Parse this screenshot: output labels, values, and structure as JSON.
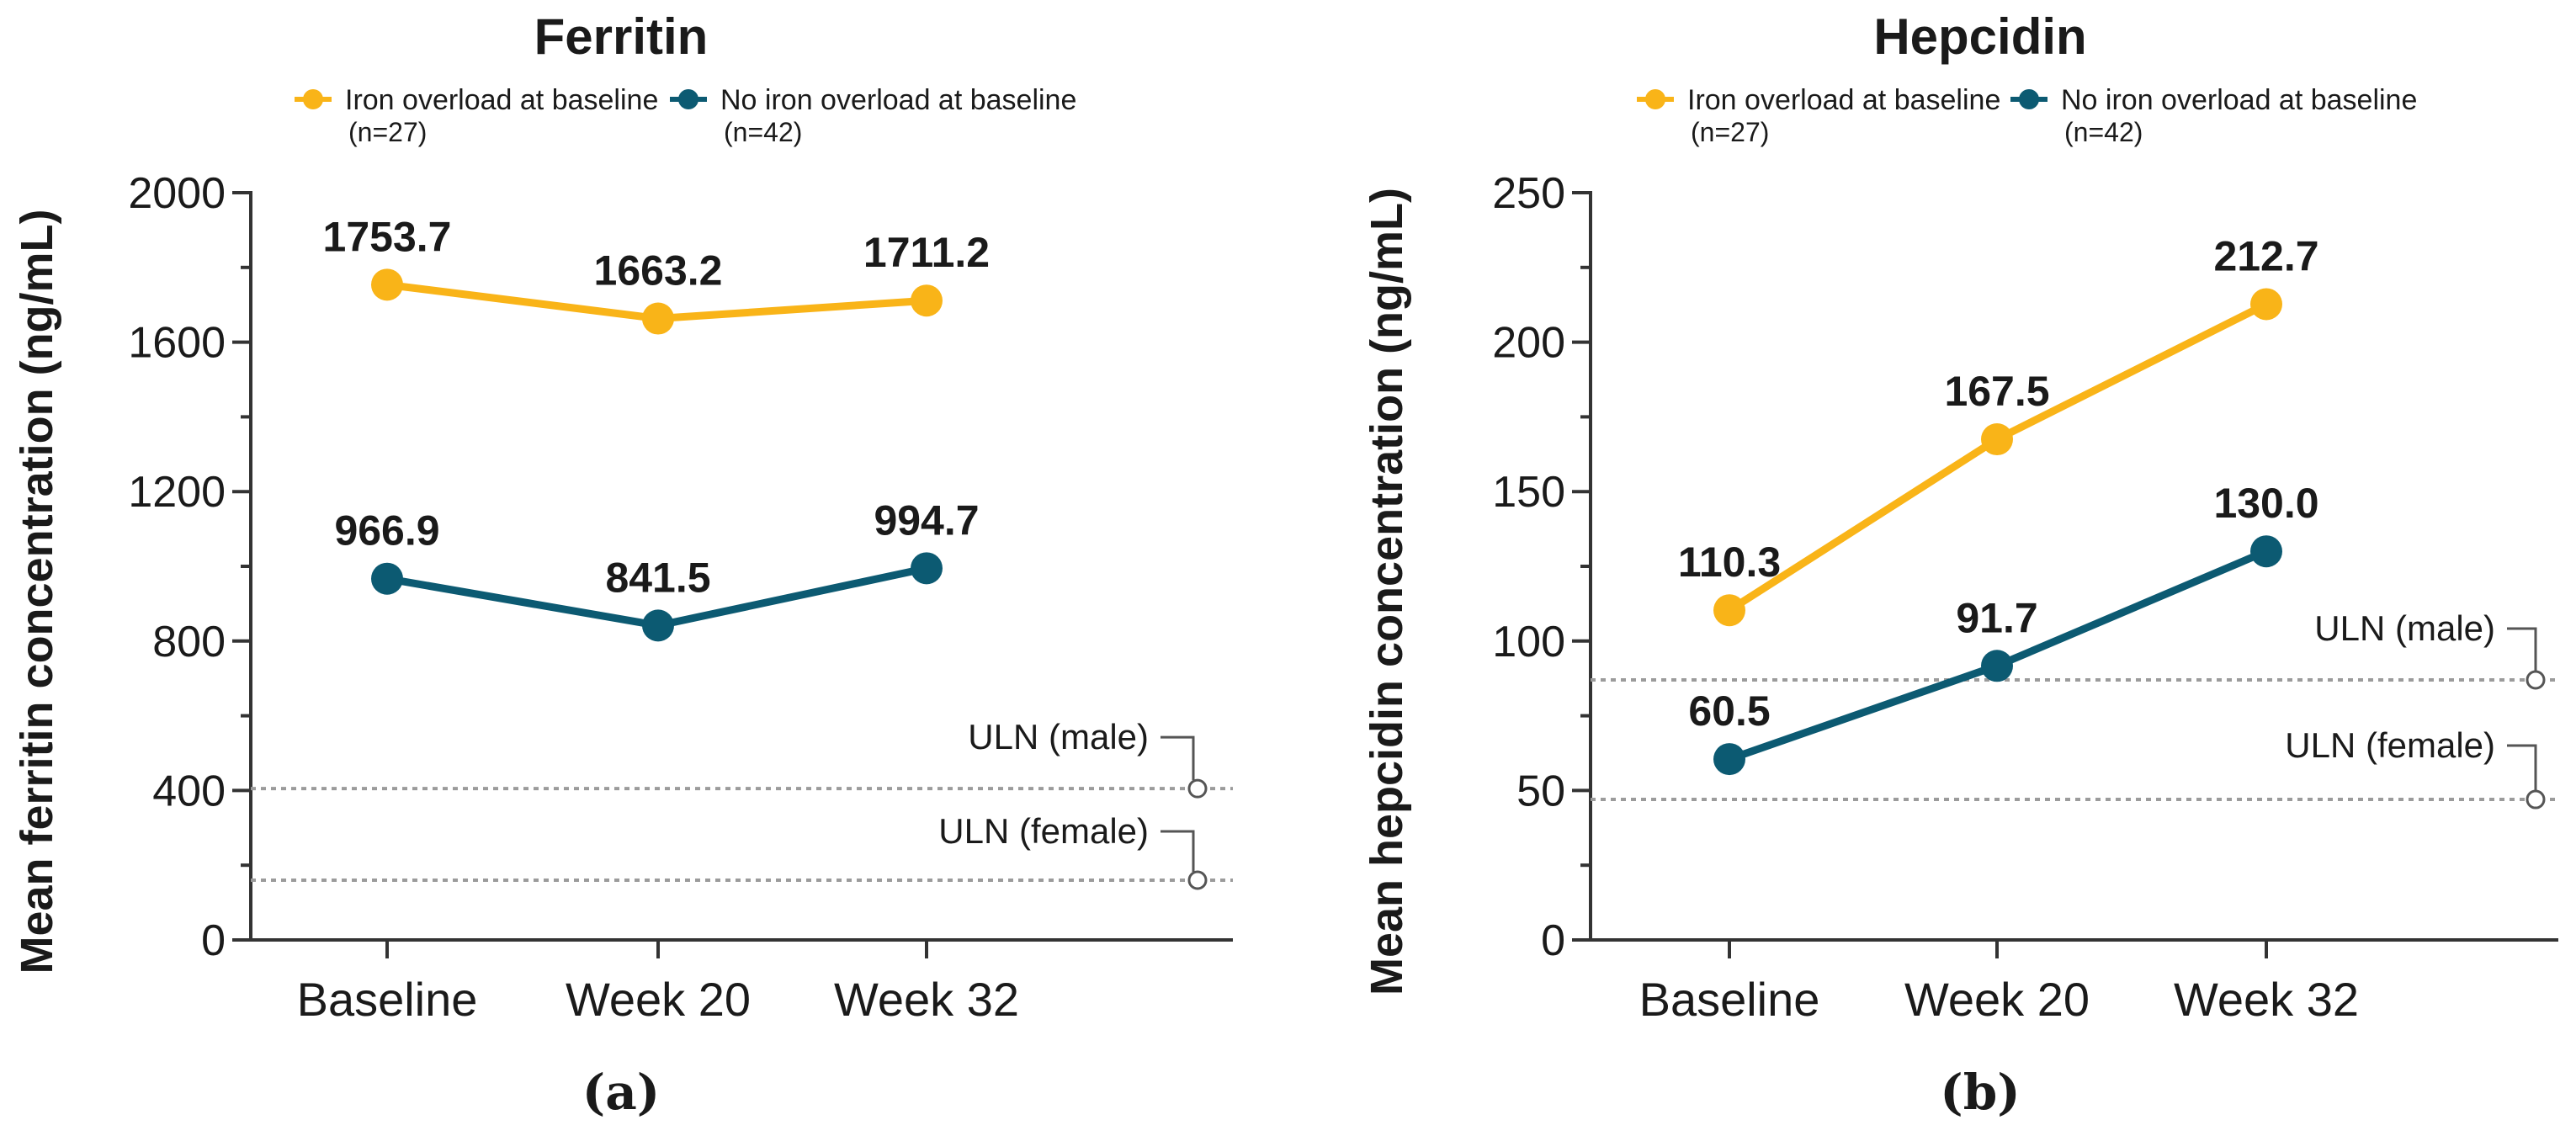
{
  "colors": {
    "iron_overload": "#F9B418",
    "no_iron_overload": "#0C5A72",
    "axis": "#333333",
    "reference": "#9b9b9b"
  },
  "chart_data": [
    {
      "type": "line",
      "title": "Ferritin",
      "panel_label": "(a)",
      "xlabel": "",
      "ylabel": "Mean ferritin concentration (ng/mL)",
      "categories": [
        "Baseline",
        "Week 20",
        "Week 32"
      ],
      "ylim": [
        0,
        2000
      ],
      "yticks": [
        0,
        400,
        800,
        1200,
        1600,
        2000
      ],
      "series": [
        {
          "name": "Iron overload at baseline",
          "n_label": "(n=27)",
          "color_key": "iron_overload",
          "values": [
            1753.7,
            1663.2,
            1711.2
          ],
          "labels": [
            "1753.7",
            "1663.2",
            "1711.2"
          ]
        },
        {
          "name": "No iron overload at baseline",
          "n_label": "(n=42)",
          "color_key": "no_iron_overload",
          "values": [
            966.9,
            841.5,
            994.7
          ],
          "labels": [
            "966.9",
            "841.5",
            "994.7"
          ]
        }
      ],
      "reference_lines": [
        {
          "label": "ULN (male)",
          "value": 405
        },
        {
          "label": "ULN (female)",
          "value": 160
        }
      ],
      "legend_position": "top"
    },
    {
      "type": "line",
      "title": "Hepcidin",
      "panel_label": "(b)",
      "xlabel": "",
      "ylabel": "Mean hepcidin concentration (ng/mL)",
      "categories": [
        "Baseline",
        "Week 20",
        "Week 32"
      ],
      "ylim": [
        0,
        250
      ],
      "yticks": [
        0,
        50,
        100,
        150,
        200,
        250
      ],
      "series": [
        {
          "name": "Iron overload at baseline",
          "n_label": "(n=27)",
          "color_key": "iron_overload",
          "values": [
            110.3,
            167.5,
            212.7
          ],
          "labels": [
            "110.3",
            "167.5",
            "212.7"
          ]
        },
        {
          "name": "No iron overload at baseline",
          "n_label": "(n=42)",
          "color_key": "no_iron_overload",
          "values": [
            60.5,
            91.7,
            130.0
          ],
          "labels": [
            "60.5",
            "91.7",
            "130.0"
          ]
        }
      ],
      "reference_lines": [
        {
          "label": "ULN (male)",
          "value": 87
        },
        {
          "label": "ULN (female)",
          "value": 47
        }
      ],
      "legend_position": "top"
    }
  ]
}
